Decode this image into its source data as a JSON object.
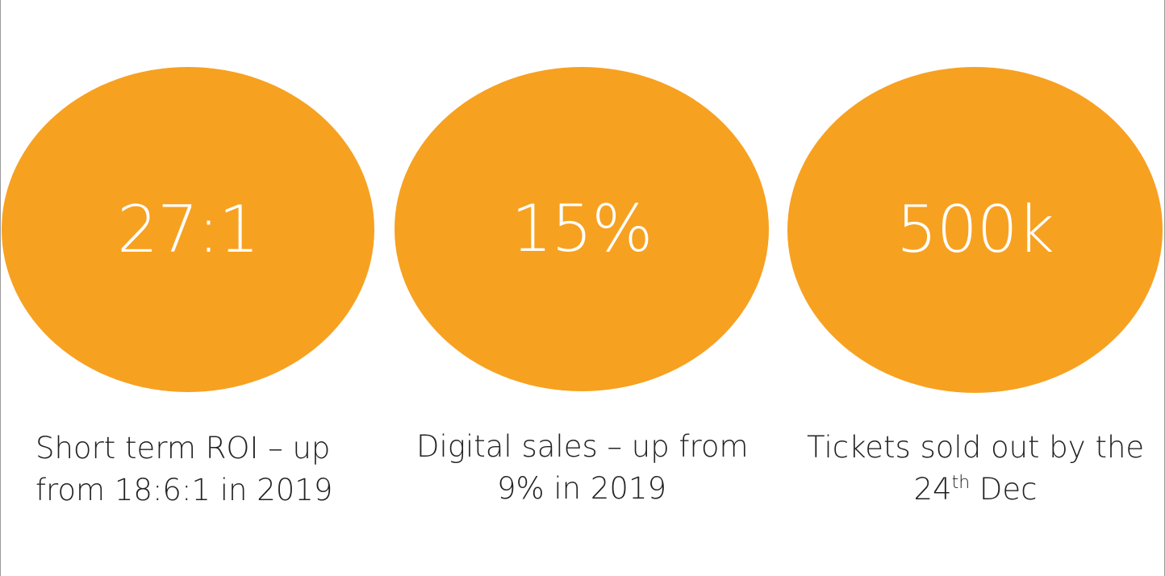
{
  "colors": {
    "circle_fill": "#F7A121",
    "value_text": "#FFFFFF",
    "caption_text": "#222222"
  },
  "stats": [
    {
      "value": "27:1",
      "caption_line1": "Short term ROI – up",
      "caption_line2": "from 18:6:1 in 2019"
    },
    {
      "value": "15%",
      "caption_line1": "Digital sales – up from",
      "caption_line2": "9% in 2019"
    },
    {
      "value": "500k",
      "caption_line1": "Tickets sold out by the",
      "caption_line2_prefix": "24",
      "caption_line2_sup": "th",
      "caption_line2_suffix": " Dec"
    }
  ]
}
